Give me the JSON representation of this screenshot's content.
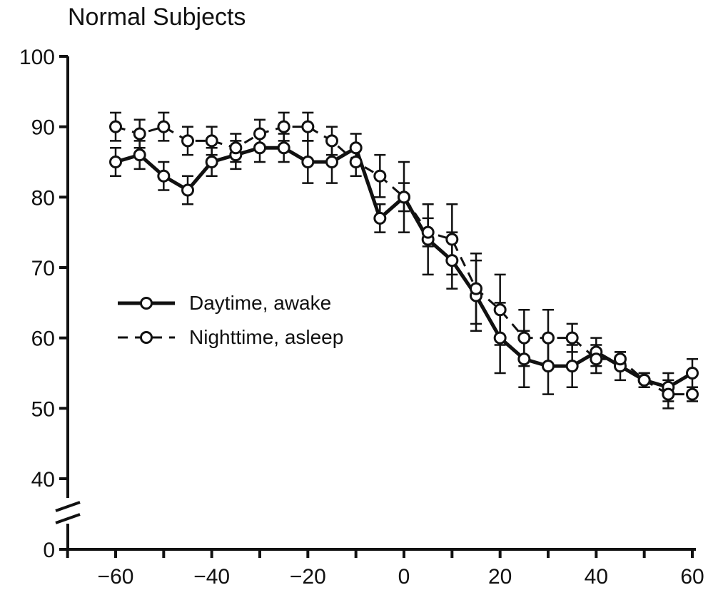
{
  "chart_data": {
    "type": "line",
    "title": "Normal Subjects",
    "xlabel": "",
    "ylabel": "",
    "xlim": [
      -70,
      60
    ],
    "ylim": [
      0,
      100
    ],
    "x_ticks": [
      -60,
      -40,
      -20,
      0,
      20,
      40,
      60
    ],
    "x_tick_labels": [
      "−60",
      "−40",
      "−20",
      "0",
      "20",
      "40",
      "60"
    ],
    "y_ticks": [
      0,
      40,
      50,
      60,
      70,
      80,
      90,
      100
    ],
    "y_tick_labels": [
      "0",
      "40",
      "50",
      "60",
      "70",
      "80",
      "90",
      "100"
    ],
    "y_axis_break": [
      0,
      40
    ],
    "grid": false,
    "legend": {
      "placement": "center-left"
    },
    "series": [
      {
        "name": "Daytime, awake",
        "style": "solid",
        "x": [
          -60,
          -55,
          -50,
          -45,
          -40,
          -35,
          -30,
          -25,
          -20,
          -15,
          -10,
          -5,
          0,
          5,
          10,
          15,
          20,
          25,
          30,
          35,
          40,
          45,
          50,
          55,
          60
        ],
        "y": [
          85,
          86,
          83,
          81,
          85,
          86,
          87,
          87,
          85,
          85,
          87,
          77,
          80,
          74,
          71,
          66,
          60,
          57,
          56,
          56,
          58,
          56,
          54,
          53,
          55
        ],
        "error": [
          2,
          2,
          2,
          2,
          2,
          2,
          2,
          2,
          3,
          3,
          2,
          2,
          2,
          5,
          4,
          5,
          5,
          4,
          4,
          3,
          2,
          2,
          1,
          2,
          2
        ]
      },
      {
        "name": "Nighttime, asleep",
        "style": "dashed",
        "x": [
          -60,
          -55,
          -50,
          -45,
          -40,
          -35,
          -30,
          -25,
          -20,
          -15,
          -10,
          -5,
          0,
          5,
          10,
          15,
          20,
          25,
          30,
          35,
          40,
          45,
          50,
          55,
          60
        ],
        "y": [
          90,
          89,
          90,
          88,
          88,
          87,
          89,
          90,
          90,
          88,
          85,
          83,
          80,
          75,
          74,
          67,
          64,
          60,
          60,
          60,
          57,
          57,
          54,
          52,
          52
        ],
        "error": [
          2,
          2,
          2,
          2,
          2,
          2,
          2,
          2,
          2,
          2,
          2,
          3,
          5,
          2,
          5,
          5,
          5,
          4,
          4,
          2,
          2,
          1,
          1,
          2,
          1
        ]
      }
    ]
  }
}
